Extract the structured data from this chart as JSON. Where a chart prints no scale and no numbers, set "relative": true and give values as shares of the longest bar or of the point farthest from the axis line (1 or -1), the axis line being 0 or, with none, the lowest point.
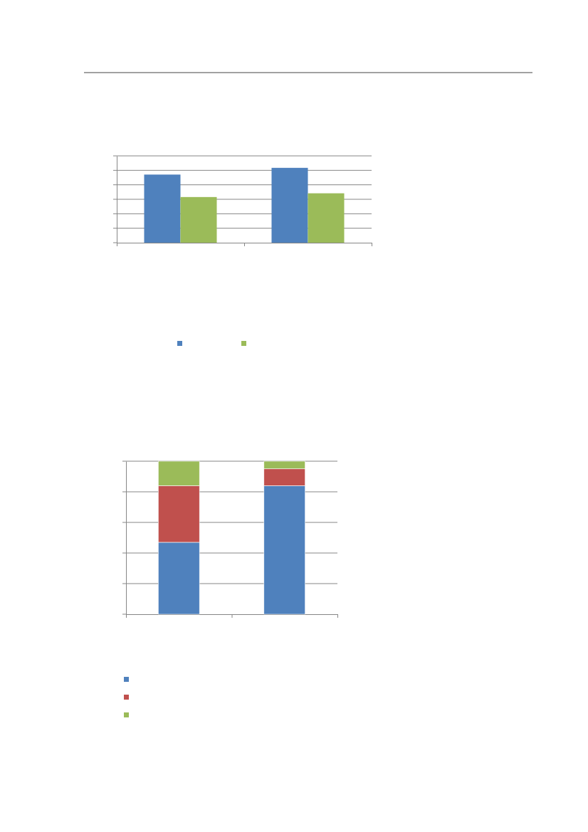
{
  "chart_data": [
    {
      "type": "bar",
      "relative": true,
      "categories": [
        null,
        null
      ],
      "grid": "y",
      "series": [
        {
          "color": "#4f81bd",
          "values": [
            0.91,
            1
          ]
        },
        {
          "color": "#9bbb59",
          "values": [
            0.61,
            0.66
          ]
        }
      ]
    },
    {
      "type": "bar",
      "relative": true,
      "stacked": true,
      "categories": [
        null,
        null
      ],
      "grid": "y",
      "series": [
        {
          "color": "#4f81bd",
          "values": [
            0.47,
            0.84
          ]
        },
        {
          "color": "#c0504d",
          "values": [
            0.37,
            0.11
          ]
        },
        {
          "color": "#9bbb59",
          "values": [
            0.16,
            0.05
          ]
        }
      ]
    }
  ]
}
